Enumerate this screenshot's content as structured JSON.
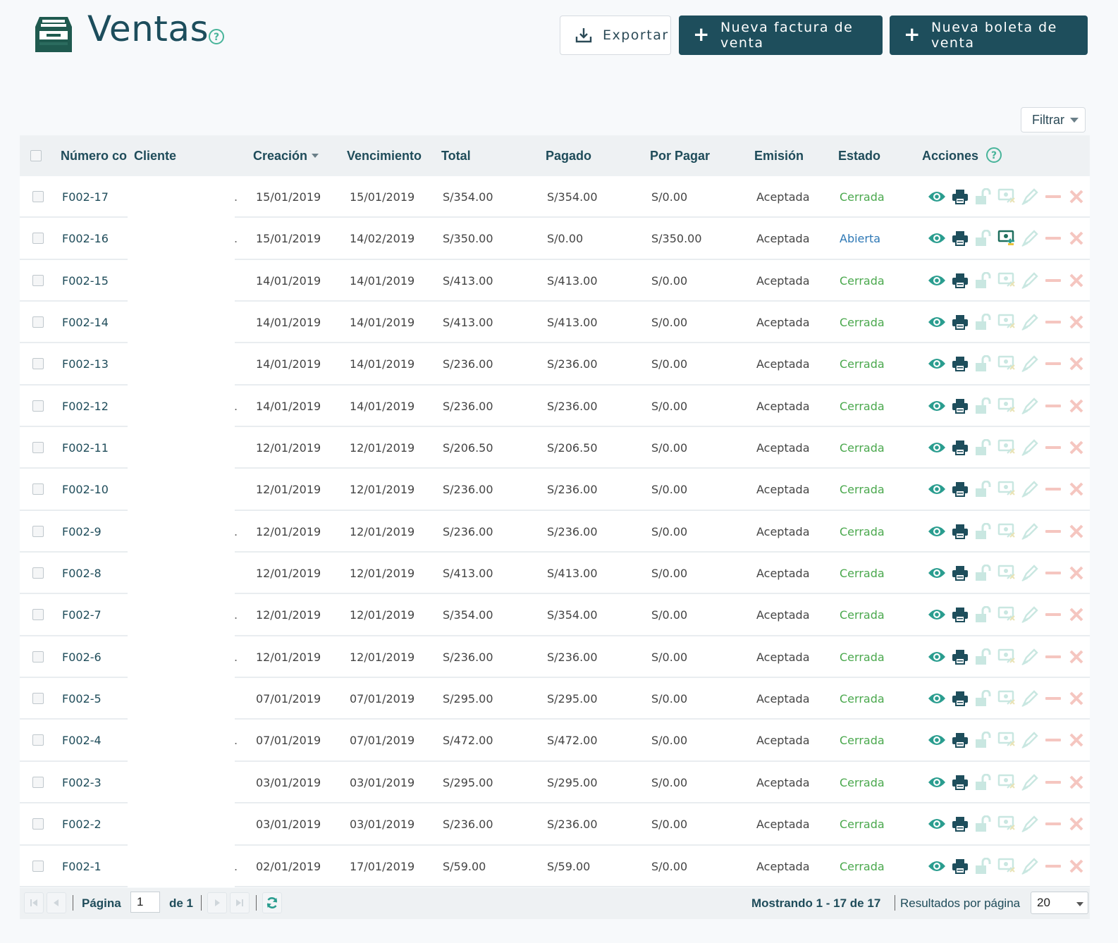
{
  "header": {
    "title": "Ventas",
    "buttons": {
      "export": "Exportar",
      "new_invoice": "Nueva factura de venta",
      "new_receipt": "Nueva boleta de venta"
    },
    "filter": "Filtrar"
  },
  "table": {
    "columns": [
      "Número co",
      "Cliente",
      "Creación",
      "Vencimiento",
      "Total",
      "Pagado",
      "Por Pagar",
      "Emisión",
      "Estado",
      "Acciones"
    ],
    "rows": [
      {
        "number": "F002-17",
        "client": ".",
        "created": "15/01/2019",
        "due": "15/01/2019",
        "total": "S/354.00",
        "paid": "S/354.00",
        "pending": "S/0.00",
        "emission": "Aceptada",
        "status": "Cerrada"
      },
      {
        "number": "F002-16",
        "client": ".",
        "created": "15/01/2019",
        "due": "14/02/2019",
        "total": "S/350.00",
        "paid": "S/0.00",
        "pending": "S/350.00",
        "emission": "Aceptada",
        "status": "Abierta"
      },
      {
        "number": "F002-15",
        "client": "",
        "created": "14/01/2019",
        "due": "14/01/2019",
        "total": "S/413.00",
        "paid": "S/413.00",
        "pending": "S/0.00",
        "emission": "Aceptada",
        "status": "Cerrada"
      },
      {
        "number": "F002-14",
        "client": "",
        "created": "14/01/2019",
        "due": "14/01/2019",
        "total": "S/413.00",
        "paid": "S/413.00",
        "pending": "S/0.00",
        "emission": "Aceptada",
        "status": "Cerrada"
      },
      {
        "number": "F002-13",
        "client": "",
        "created": "14/01/2019",
        "due": "14/01/2019",
        "total": "S/236.00",
        "paid": "S/236.00",
        "pending": "S/0.00",
        "emission": "Aceptada",
        "status": "Cerrada"
      },
      {
        "number": "F002-12",
        "client": ".",
        "created": "14/01/2019",
        "due": "14/01/2019",
        "total": "S/236.00",
        "paid": "S/236.00",
        "pending": "S/0.00",
        "emission": "Aceptada",
        "status": "Cerrada"
      },
      {
        "number": "F002-11",
        "client": "",
        "created": "12/01/2019",
        "due": "12/01/2019",
        "total": "S/206.50",
        "paid": "S/206.50",
        "pending": "S/0.00",
        "emission": "Aceptada",
        "status": "Cerrada"
      },
      {
        "number": "F002-10",
        "client": "",
        "created": "12/01/2019",
        "due": "12/01/2019",
        "total": "S/236.00",
        "paid": "S/236.00",
        "pending": "S/0.00",
        "emission": "Aceptada",
        "status": "Cerrada"
      },
      {
        "number": "F002-9",
        "client": ".",
        "created": "12/01/2019",
        "due": "12/01/2019",
        "total": "S/236.00",
        "paid": "S/236.00",
        "pending": "S/0.00",
        "emission": "Aceptada",
        "status": "Cerrada"
      },
      {
        "number": "F002-8",
        "client": "",
        "created": "12/01/2019",
        "due": "12/01/2019",
        "total": "S/413.00",
        "paid": "S/413.00",
        "pending": "S/0.00",
        "emission": "Aceptada",
        "status": "Cerrada"
      },
      {
        "number": "F002-7",
        "client": ".",
        "created": "12/01/2019",
        "due": "12/01/2019",
        "total": "S/354.00",
        "paid": "S/354.00",
        "pending": "S/0.00",
        "emission": "Aceptada",
        "status": "Cerrada"
      },
      {
        "number": "F002-6",
        "client": ".",
        "created": "12/01/2019",
        "due": "12/01/2019",
        "total": "S/236.00",
        "paid": "S/236.00",
        "pending": "S/0.00",
        "emission": "Aceptada",
        "status": "Cerrada"
      },
      {
        "number": "F002-5",
        "client": "",
        "created": "07/01/2019",
        "due": "07/01/2019",
        "total": "S/295.00",
        "paid": "S/295.00",
        "pending": "S/0.00",
        "emission": "Aceptada",
        "status": "Cerrada"
      },
      {
        "number": "F002-4",
        "client": ".",
        "created": "07/01/2019",
        "due": "07/01/2019",
        "total": "S/472.00",
        "paid": "S/472.00",
        "pending": "S/0.00",
        "emission": "Aceptada",
        "status": "Cerrada"
      },
      {
        "number": "F002-3",
        "client": "",
        "created": "03/01/2019",
        "due": "03/01/2019",
        "total": "S/295.00",
        "paid": "S/295.00",
        "pending": "S/0.00",
        "emission": "Aceptada",
        "status": "Cerrada"
      },
      {
        "number": "F002-2",
        "client": "",
        "created": "03/01/2019",
        "due": "03/01/2019",
        "total": "S/236.00",
        "paid": "S/236.00",
        "pending": "S/0.00",
        "emission": "Aceptada",
        "status": "Cerrada"
      },
      {
        "number": "F002-1",
        "client": ".",
        "created": "02/01/2019",
        "due": "17/01/2019",
        "total": "S/59.00",
        "paid": "S/59.00",
        "pending": "S/0.00",
        "emission": "Aceptada",
        "status": "Cerrada"
      }
    ],
    "row_actions": [
      "eye-icon",
      "print-icon",
      "unlock-icon",
      "payment-icon",
      "edit-icon",
      "minus-icon",
      "close-icon"
    ]
  },
  "pagination": {
    "page_label": "Página",
    "page_value": "1",
    "of_label": "de 1",
    "showing": "Mostrando 1 - 17 de 17",
    "per_page_label": "Resultados por página",
    "per_page_value": "20"
  },
  "colors": {
    "brand": "#1e4e5c",
    "teal": "#2a9d8f",
    "status_closed": "#4aa84d",
    "status_open": "#2e78b5"
  }
}
